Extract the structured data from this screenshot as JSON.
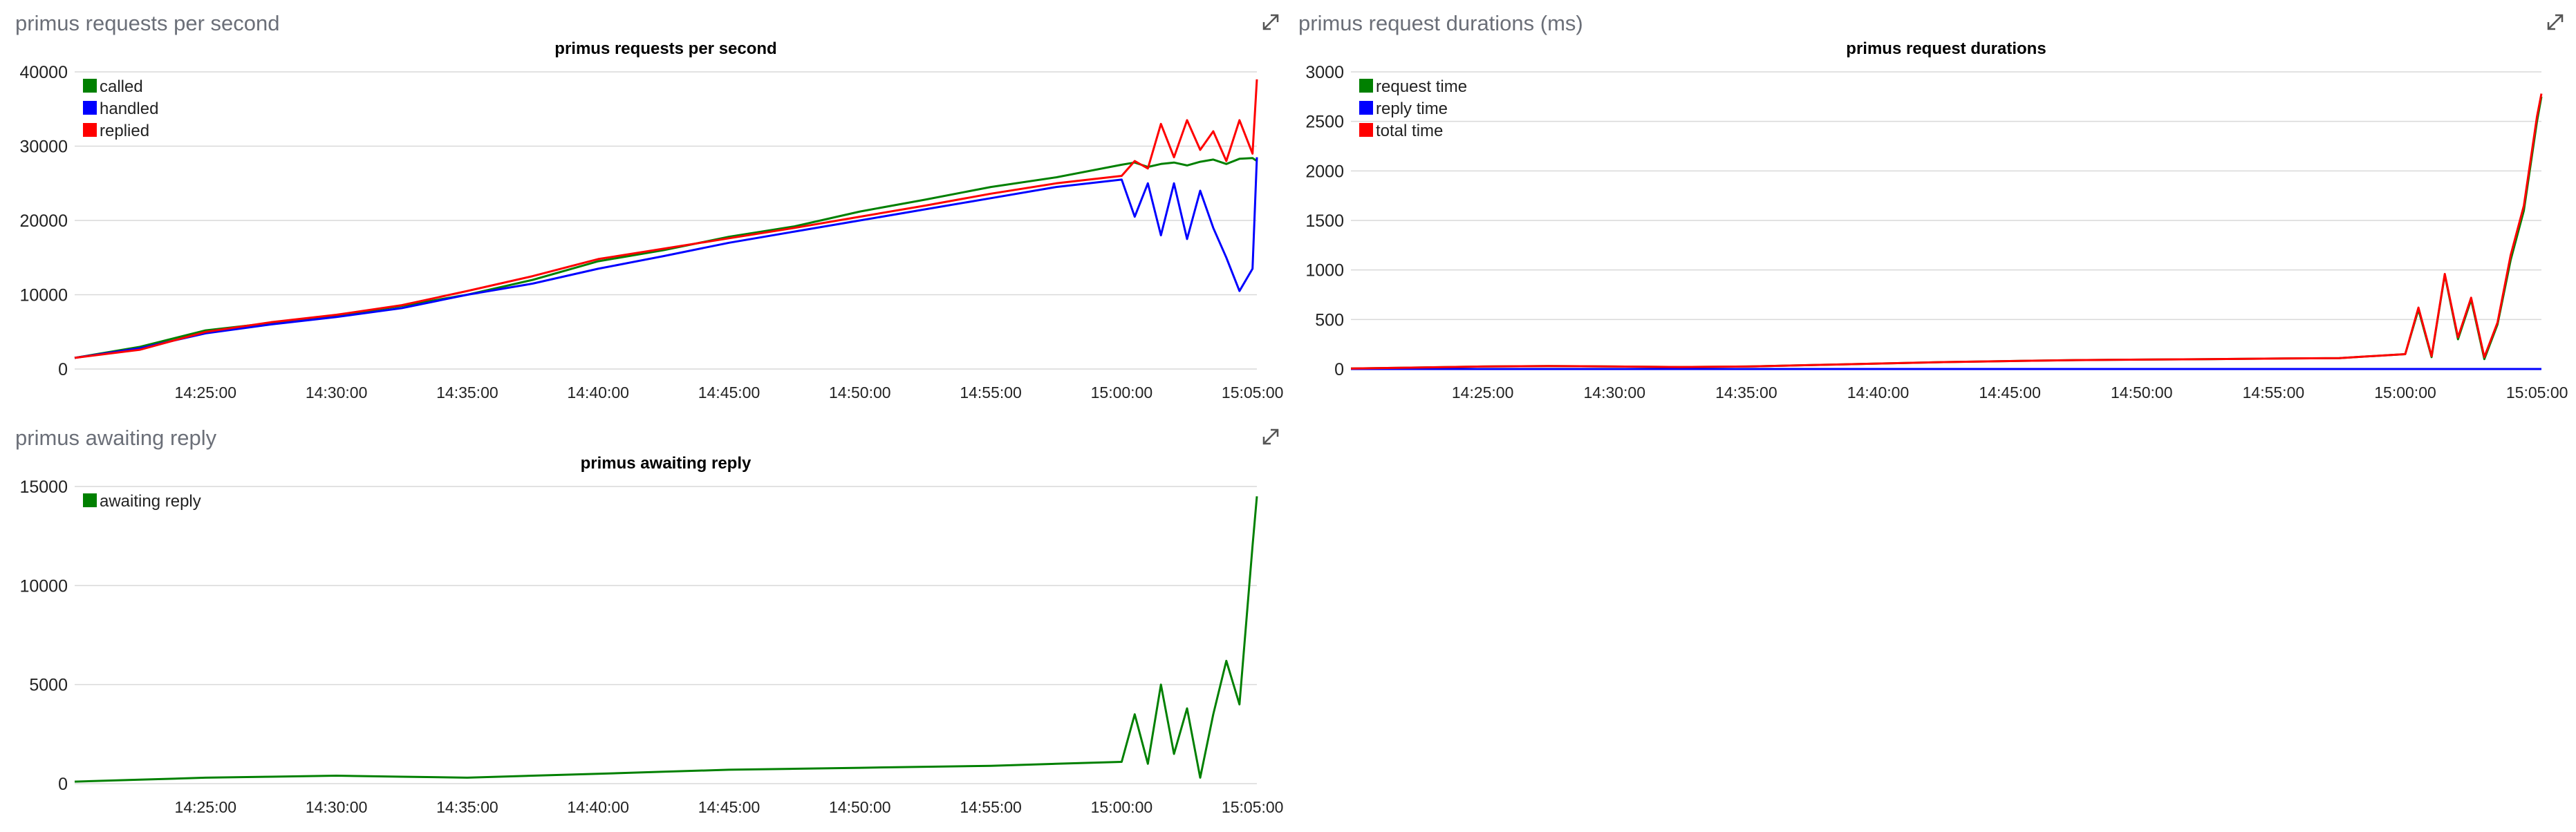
{
  "panels": [
    {
      "title": "primus requests per second",
      "expand_icon": "expand-icon"
    },
    {
      "title": "primus request durations (ms)",
      "expand_icon": "expand-icon"
    },
    {
      "title": "primus awaiting reply",
      "expand_icon": "expand-icon"
    }
  ],
  "chart_data": [
    {
      "type": "line",
      "title": "primus requests per second",
      "xlabel": "",
      "ylabel": "",
      "x": [
        "14:20:00",
        "14:22:30",
        "14:25:00",
        "14:27:30",
        "14:30:00",
        "14:32:30",
        "14:35:00",
        "14:37:30",
        "14:40:00",
        "14:42:30",
        "14:45:00",
        "14:47:30",
        "14:50:00",
        "14:52:30",
        "14:55:00",
        "14:57:30",
        "15:00:00",
        "15:00:30",
        "15:01:00",
        "15:01:30",
        "15:02:00",
        "15:02:30",
        "15:03:00",
        "15:03:30",
        "15:04:00",
        "15:04:30",
        "15:05:00",
        "15:05:10"
      ],
      "xticks": [
        "14:25:00",
        "14:30:00",
        "14:35:00",
        "14:40:00",
        "14:45:00",
        "14:50:00",
        "14:55:00",
        "15:00:00",
        "15:05:00"
      ],
      "yticks": [
        "0",
        "10000",
        "20000",
        "30000",
        "40000"
      ],
      "ylim": [
        0,
        40000
      ],
      "legend_position": "top-left",
      "grid": true,
      "series": [
        {
          "name": "called",
          "color": "#008000",
          "values": [
            1500,
            3000,
            5200,
            6200,
            7200,
            8500,
            10000,
            12000,
            14500,
            16000,
            17800,
            19200,
            21200,
            22800,
            24500,
            25800,
            27500,
            27800,
            27200,
            27600,
            27800,
            27400,
            27900,
            28200,
            27600,
            28300,
            28400,
            28000
          ]
        },
        {
          "name": "handled",
          "color": "#0000ff",
          "values": [
            1500,
            2800,
            4800,
            6000,
            7000,
            8200,
            10000,
            11500,
            13500,
            15200,
            17000,
            18500,
            20000,
            21500,
            23000,
            24500,
            25500,
            20500,
            25000,
            18000,
            25000,
            17500,
            24000,
            19000,
            15000,
            10500,
            13500,
            28500
          ]
        },
        {
          "name": "replied",
          "color": "#ff0000",
          "values": [
            1500,
            2600,
            5000,
            6300,
            7300,
            8600,
            10500,
            12500,
            14800,
            16200,
            17600,
            19000,
            20500,
            22000,
            23600,
            25000,
            26000,
            28000,
            27000,
            33000,
            28500,
            33500,
            29500,
            32000,
            28000,
            33500,
            29000,
            39000
          ]
        }
      ]
    },
    {
      "type": "line",
      "title": "primus request durations",
      "xlabel": "",
      "ylabel": "",
      "x": [
        "14:20:00",
        "14:22:30",
        "14:25:00",
        "14:27:30",
        "14:30:00",
        "14:32:30",
        "14:35:00",
        "14:37:30",
        "14:40:00",
        "14:42:30",
        "14:45:00",
        "14:47:30",
        "14:50:00",
        "14:52:30",
        "14:55:00",
        "14:57:30",
        "15:00:00",
        "15:00:30",
        "15:01:00",
        "15:01:30",
        "15:02:00",
        "15:02:30",
        "15:03:00",
        "15:03:30",
        "15:04:00",
        "15:04:30",
        "15:05:00",
        "15:05:10"
      ],
      "xticks": [
        "14:25:00",
        "14:30:00",
        "14:35:00",
        "14:40:00",
        "14:45:00",
        "14:50:00",
        "14:55:00",
        "15:00:00",
        "15:05:00"
      ],
      "yticks": [
        "0",
        "500",
        "1000",
        "1500",
        "2000",
        "2500",
        "3000"
      ],
      "ylim": [
        0,
        3000
      ],
      "legend_position": "top-left",
      "grid": true,
      "series": [
        {
          "name": "request time",
          "color": "#008000",
          "values": [
            5,
            15,
            25,
            30,
            25,
            20,
            25,
            40,
            55,
            70,
            80,
            90,
            95,
            100,
            105,
            110,
            150,
            600,
            120,
            950,
            300,
            700,
            100,
            450,
            1100,
            1600,
            2500,
            2750
          ]
        },
        {
          "name": "reply time",
          "color": "#0000ff",
          "values": [
            0,
            0,
            0,
            0,
            0,
            0,
            0,
            0,
            0,
            0,
            0,
            0,
            0,
            0,
            0,
            0,
            0,
            0,
            0,
            0,
            0,
            0,
            0,
            0,
            0,
            0,
            0,
            0
          ]
        },
        {
          "name": "total time",
          "color": "#ff0000",
          "values": [
            5,
            15,
            25,
            30,
            25,
            20,
            25,
            40,
            55,
            70,
            80,
            90,
            95,
            100,
            105,
            110,
            150,
            620,
            130,
            960,
            320,
            720,
            120,
            470,
            1150,
            1650,
            2550,
            2780
          ]
        }
      ]
    },
    {
      "type": "line",
      "title": "primus awaiting reply",
      "xlabel": "",
      "ylabel": "",
      "x": [
        "14:20:00",
        "14:22:30",
        "14:25:00",
        "14:27:30",
        "14:30:00",
        "14:32:30",
        "14:35:00",
        "14:37:30",
        "14:40:00",
        "14:42:30",
        "14:45:00",
        "14:47:30",
        "14:50:00",
        "14:52:30",
        "14:55:00",
        "14:57:30",
        "15:00:00",
        "15:00:30",
        "15:01:00",
        "15:01:30",
        "15:02:00",
        "15:02:30",
        "15:03:00",
        "15:03:30",
        "15:04:00",
        "15:04:30",
        "15:05:00",
        "15:05:10"
      ],
      "xticks": [
        "14:25:00",
        "14:30:00",
        "14:35:00",
        "14:40:00",
        "14:45:00",
        "14:50:00",
        "14:55:00",
        "15:00:00",
        "15:05:00"
      ],
      "yticks": [
        "0",
        "5000",
        "10000",
        "15000"
      ],
      "ylim": [
        0,
        15000
      ],
      "legend_position": "top-left",
      "grid": true,
      "series": [
        {
          "name": "awaiting reply",
          "color": "#008000",
          "values": [
            100,
            200,
            300,
            350,
            400,
            350,
            300,
            400,
            500,
            600,
            700,
            750,
            800,
            850,
            900,
            1000,
            1100,
            3500,
            1000,
            5000,
            1500,
            3800,
            300,
            3500,
            6200,
            4000,
            12000,
            14500
          ]
        }
      ]
    }
  ]
}
